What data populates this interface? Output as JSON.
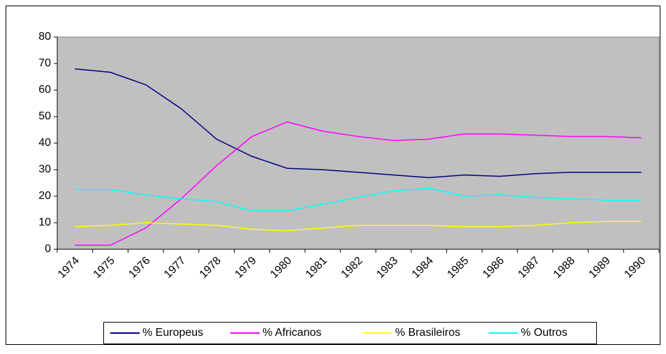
{
  "chart_data": {
    "type": "line",
    "categories": [
      "1974",
      "1975",
      "1976",
      "1977",
      "1978",
      "1979",
      "1980",
      "1981",
      "1982",
      "1983",
      "1984",
      "1985",
      "1986",
      "1987",
      "1988",
      "1989",
      "1990"
    ],
    "series": [
      {
        "name": "% Europeus",
        "color": "#000080",
        "values": [
          68,
          66.7,
          62,
          53,
          41.5,
          35,
          30.5,
          30,
          29,
          28,
          27,
          28,
          27.5,
          28.5,
          29,
          29,
          29
        ]
      },
      {
        "name": "% Africanos",
        "color": "#ff00ff",
        "values": [
          1.5,
          1.5,
          8,
          19,
          31.5,
          42.5,
          48,
          44.5,
          42.5,
          41,
          41.5,
          43.5,
          43.5,
          43,
          42.5,
          42.5,
          42
        ]
      },
      {
        "name": "% Brasileiros",
        "color": "#ffff00",
        "values": [
          8.5,
          9,
          10,
          9.5,
          9,
          7.5,
          7,
          8,
          9,
          9,
          9,
          8.5,
          8.5,
          9,
          10,
          10.5,
          10.5
        ]
      },
      {
        "name": "% Outros",
        "color": "#00ffff",
        "values": [
          22.5,
          22.5,
          20.5,
          19,
          18,
          14.5,
          14.5,
          17,
          19.5,
          22,
          23,
          20,
          20.5,
          19.5,
          19,
          18.5,
          18.5
        ]
      }
    ],
    "ylim": [
      0,
      80
    ],
    "yticks": [
      0,
      10,
      20,
      30,
      40,
      50,
      60,
      70,
      80
    ],
    "grid": false,
    "legend": "bottom"
  }
}
